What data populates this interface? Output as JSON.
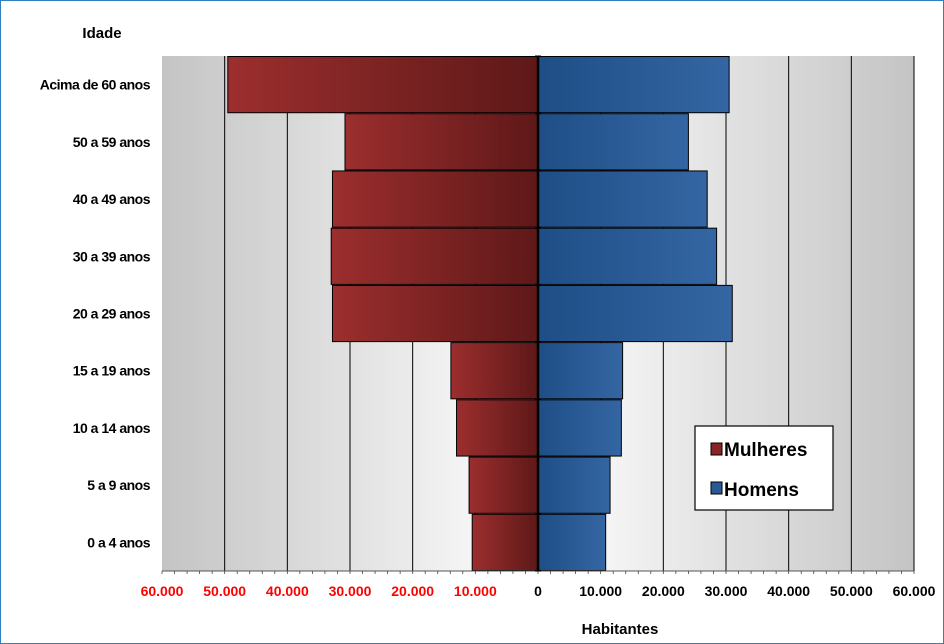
{
  "chart_data": {
    "type": "bar",
    "orientation": "horizontal",
    "subtype": "population-pyramid",
    "ylabel": "Idade",
    "xlabel": "Habitantes",
    "categories": [
      "Acima de 60 anos",
      "50 a 59 anos",
      "40 a 49 anos",
      "30 a 39 anos",
      "20 a 29 anos",
      "15 a 19 anos",
      "10 a 14 anos",
      "5 a 9 anos",
      "0 a 4 anos"
    ],
    "series": [
      {
        "name": "Mulheres",
        "color": "#8b2525",
        "side": "left",
        "values": [
          49500,
          30800,
          32800,
          33000,
          32800,
          13900,
          13000,
          11000,
          10500
        ]
      },
      {
        "name": "Homens",
        "color": "#2a5a96",
        "side": "right",
        "values": [
          30500,
          24000,
          27000,
          28500,
          31000,
          13500,
          13300,
          11500,
          10800
        ]
      }
    ],
    "xlim": [
      -60000,
      60000
    ],
    "xticks": [
      {
        "value": -60000,
        "label": "60.000",
        "color": "#ff0000"
      },
      {
        "value": -50000,
        "label": "50.000",
        "color": "#ff0000"
      },
      {
        "value": -40000,
        "label": "40.000",
        "color": "#ff0000"
      },
      {
        "value": -30000,
        "label": "30.000",
        "color": "#ff0000"
      },
      {
        "value": -20000,
        "label": "20.000",
        "color": "#ff0000"
      },
      {
        "value": -10000,
        "label": "10.000",
        "color": "#ff0000"
      },
      {
        "value": 0,
        "label": "0",
        "color": "#000000"
      },
      {
        "value": 10000,
        "label": "10.000",
        "color": "#000000"
      },
      {
        "value": 20000,
        "label": "20.000",
        "color": "#000000"
      },
      {
        "value": 30000,
        "label": "30.000",
        "color": "#000000"
      },
      {
        "value": 40000,
        "label": "40.000",
        "color": "#000000"
      },
      {
        "value": 50000,
        "label": "50.000",
        "color": "#000000"
      },
      {
        "value": 60000,
        "label": "60.000",
        "color": "#000000"
      }
    ],
    "grid": "vertical",
    "legend_position": "bottom-right",
    "colors": {
      "border": "#2e7fbf"
    }
  }
}
